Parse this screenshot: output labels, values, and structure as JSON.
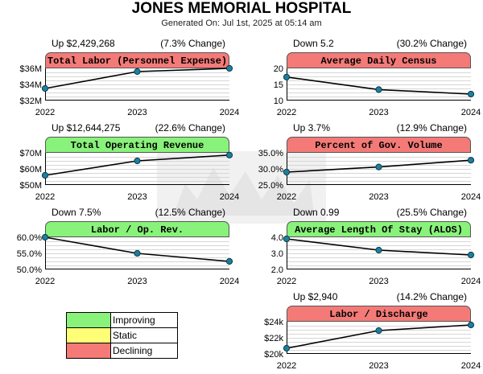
{
  "header": {
    "title": "JONES MEMORIAL HOSPITAL",
    "subtitle": "Generated On: Jul 1st, 2025 at 05:14 am"
  },
  "colors": {
    "improving": "#88f27a",
    "static": "#ffff77",
    "declining": "#f47a78"
  },
  "legend": [
    {
      "label": "Improving",
      "color": "#88f27a"
    },
    {
      "label": "Static",
      "color": "#ffff77"
    },
    {
      "label": "Declining",
      "color": "#f47a78"
    }
  ],
  "chart_data": [
    {
      "type": "line",
      "title": "Total Labor (Personnel Expense)",
      "status": "declining",
      "change_summary": "Up $2,429,268",
      "change_pct": "(7.3% Change)",
      "x": [
        "2022",
        "2023",
        "2024"
      ],
      "values": [
        33.5,
        35.6,
        36.0
      ],
      "units": "$M",
      "ylim": [
        32,
        36
      ],
      "yticks": [
        {
          "v": 36,
          "label": "$36M"
        },
        {
          "v": 34,
          "label": "$34M"
        },
        {
          "v": 32,
          "label": "$32M"
        }
      ]
    },
    {
      "type": "line",
      "title": "Average Daily Census",
      "status": "declining",
      "change_summary": "Down 5.2",
      "change_pct": "(30.2% Change)",
      "x": [
        "2022",
        "2023",
        "2024"
      ],
      "values": [
        17.3,
        13.4,
        12.0
      ],
      "ylim": [
        10,
        20
      ],
      "yticks": [
        {
          "v": 20,
          "label": "20"
        },
        {
          "v": 15,
          "label": "15"
        },
        {
          "v": 10,
          "label": "10"
        }
      ]
    },
    {
      "type": "line",
      "title": "Total Operating Revenue",
      "status": "improving",
      "change_summary": "Up $12,644,275",
      "change_pct": "(22.6% Change)",
      "x": [
        "2022",
        "2023",
        "2024"
      ],
      "values": [
        56.0,
        65.0,
        68.6
      ],
      "units": "$M",
      "ylim": [
        50,
        70
      ],
      "yticks": [
        {
          "v": 70,
          "label": "$70M"
        },
        {
          "v": 60,
          "label": "$60M"
        },
        {
          "v": 50,
          "label": "$50M"
        }
      ]
    },
    {
      "type": "line",
      "title": "Percent of Gov. Volume",
      "status": "declining",
      "change_summary": "Up 3.7%",
      "change_pct": "(12.9% Change)",
      "x": [
        "2022",
        "2023",
        "2024"
      ],
      "values": [
        29.0,
        30.6,
        32.7
      ],
      "units": "%",
      "ylim": [
        25,
        35
      ],
      "yticks": [
        {
          "v": 35,
          "label": "35.0%"
        },
        {
          "v": 30,
          "label": "30.0%"
        },
        {
          "v": 25,
          "label": "25.0%"
        }
      ]
    },
    {
      "type": "line",
      "title": "Labor / Op. Rev.",
      "status": "improving",
      "change_summary": "Down 7.5%",
      "change_pct": "(12.5% Change)",
      "x": [
        "2022",
        "2023",
        "2024"
      ],
      "values": [
        60.0,
        55.0,
        52.5
      ],
      "units": "%",
      "ylim": [
        50,
        60
      ],
      "yticks": [
        {
          "v": 60,
          "label": "60.0%"
        },
        {
          "v": 55,
          "label": "55.0%"
        },
        {
          "v": 50,
          "label": "50.0%"
        }
      ]
    },
    {
      "type": "line",
      "title": "Average Length Of Stay (ALOS)",
      "status": "improving",
      "change_summary": "Down 0.99",
      "change_pct": "(25.5% Change)",
      "x": [
        "2022",
        "2023",
        "2024"
      ],
      "values": [
        3.9,
        3.2,
        2.9
      ],
      "ylim": [
        2,
        4
      ],
      "yticks": [
        {
          "v": 4,
          "label": "4.0"
        },
        {
          "v": 3,
          "label": "3.0"
        },
        {
          "v": 2,
          "label": "2.0"
        }
      ]
    },
    {
      "type": "line",
      "title": "Labor / Discharge",
      "status": "declining",
      "change_summary": "Up $2,940",
      "change_pct": "(14.2% Change)",
      "x": [
        "2022",
        "2023",
        "2024"
      ],
      "values": [
        20.7,
        22.9,
        23.6
      ],
      "units": "$k",
      "ylim": [
        20,
        24
      ],
      "yticks": [
        {
          "v": 24,
          "label": "$24k"
        },
        {
          "v": 22,
          "label": "$22k"
        },
        {
          "v": 20,
          "label": "$20k"
        }
      ]
    }
  ]
}
